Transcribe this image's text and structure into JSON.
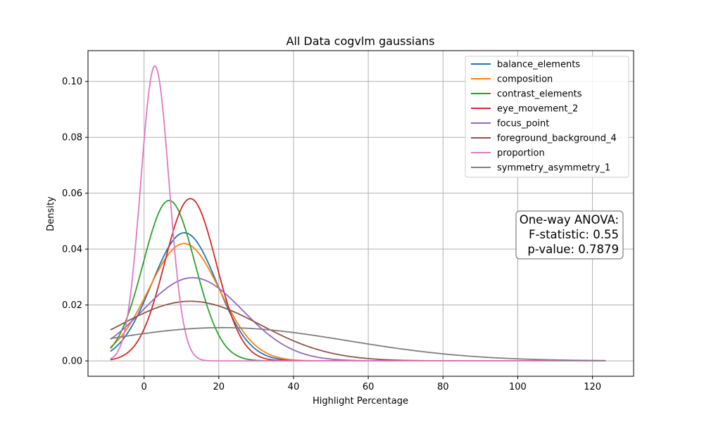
{
  "chart_data": {
    "type": "line",
    "title": "All Data cogvlm gaussians",
    "xlabel": "Highlight Percentage",
    "ylabel": "Density",
    "xlim": [
      -15,
      131
    ],
    "ylim": [
      -0.0055,
      0.111
    ],
    "xticks": [
      0,
      20,
      40,
      60,
      80,
      100,
      120
    ],
    "yticks": [
      0.0,
      0.02,
      0.04,
      0.06,
      0.08,
      0.1
    ],
    "ytick_labels": [
      "0.00",
      "0.02",
      "0.04",
      "0.06",
      "0.08",
      "0.10"
    ],
    "x_range": [
      -9,
      123.5
    ],
    "grid": true,
    "legend_position": "top-right",
    "series": [
      {
        "name": "balance_elements",
        "color": "#1f77b4",
        "mean": 10.8,
        "sd": 8.7
      },
      {
        "name": "composition",
        "color": "#ff7f0e",
        "mean": 10.7,
        "sd": 9.5
      },
      {
        "name": "contrast_elements",
        "color": "#2ca02c",
        "mean": 6.7,
        "sd": 6.95
      },
      {
        "name": "eye_movement_2",
        "color": "#d62728",
        "mean": 12.4,
        "sd": 6.87
      },
      {
        "name": "focus_point",
        "color": "#9467bd",
        "mean": 13.0,
        "sd": 13.4
      },
      {
        "name": "foreground_background_4",
        "color": "#8c564b",
        "mean": 12.4,
        "sd": 18.7
      },
      {
        "name": "proportion",
        "color": "#e377c2",
        "mean": 2.9,
        "sd": 3.78
      },
      {
        "name": "symmetry_asymmetry_1",
        "color": "#7f7f7f",
        "mean": 21.0,
        "sd": 33.5
      }
    ],
    "annotation": {
      "lines": [
        "One-way ANOVA:",
        "F-statistic: 0.55",
        "p-value: 0.7879"
      ]
    }
  }
}
